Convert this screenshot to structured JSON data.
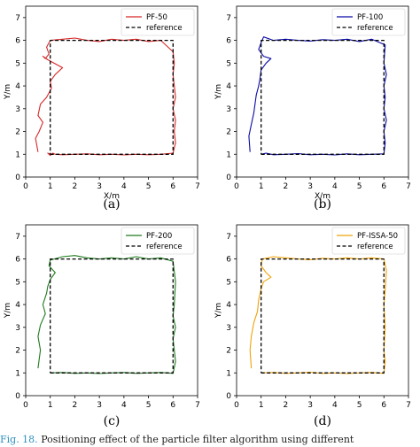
{
  "caption": {
    "figure_number": "Fig. 18.",
    "text": "Positioning effect of the particle filter algorithm using different"
  },
  "chart_data": [
    {
      "type": "line",
      "panel_label": "(a)",
      "xlabel": "X/m",
      "ylabel": "Y/m",
      "xlim": [
        0,
        7
      ],
      "ylim": [
        0,
        7.5
      ],
      "xticks": [
        "0",
        "1",
        "2",
        "3",
        "4",
        "5",
        "6",
        "7"
      ],
      "yticks": [
        "0",
        "1",
        "2",
        "3",
        "4",
        "5",
        "6",
        "7"
      ],
      "legend_position": "top-right",
      "series": [
        {
          "name": "PF-50",
          "color": "#d62728",
          "style": "solid",
          "x": [
            1.0,
            0.9,
            1.0,
            1.1,
            1.2,
            1.5,
            2.0,
            2.5,
            3.0,
            3.5,
            4.0,
            4.5,
            5.0,
            5.5,
            6.0,
            6.1,
            6.05,
            6.1,
            6.0,
            6.1,
            6.05,
            6.0,
            6.05,
            6.0,
            5.5,
            5.0,
            4.5,
            4.0,
            3.5,
            3.0,
            2.5,
            2.0,
            1.5,
            1.0,
            0.85,
            0.95,
            0.8,
            0.7,
            0.9,
            1.5,
            1.2,
            1.0,
            1.05,
            0.85,
            0.6,
            0.5,
            0.7,
            0.55,
            0.4,
            0.5
          ],
          "y": [
            1.0,
            1.05,
            0.95,
            1.05,
            1.0,
            0.98,
            1.0,
            1.02,
            0.98,
            1.0,
            0.97,
            1.0,
            0.98,
            1.0,
            1.05,
            1.5,
            2.0,
            2.5,
            3.0,
            3.5,
            4.0,
            4.5,
            5.0,
            5.5,
            6.0,
            5.95,
            6.05,
            6.0,
            6.05,
            5.95,
            6.0,
            6.1,
            6.05,
            6.0,
            5.7,
            5.4,
            5.2,
            5.3,
            5.15,
            4.8,
            4.5,
            4.2,
            3.9,
            3.5,
            3.2,
            2.7,
            2.4,
            2.0,
            1.7,
            1.1
          ]
        },
        {
          "name": "reference",
          "color": "#000000",
          "style": "dashed",
          "x": [
            1,
            6,
            6,
            1,
            1
          ],
          "y": [
            1,
            1,
            6,
            6,
            1
          ]
        }
      ]
    },
    {
      "type": "line",
      "panel_label": "(b)",
      "xlabel": "X/m",
      "ylabel": "Y/m",
      "xlim": [
        0,
        7
      ],
      "ylim": [
        0,
        7.5
      ],
      "xticks": [
        "0",
        "1",
        "2",
        "3",
        "4",
        "5",
        "6",
        "7"
      ],
      "yticks": [
        "0",
        "1",
        "2",
        "3",
        "4",
        "5",
        "6",
        "7"
      ],
      "legend_position": "top-right",
      "series": [
        {
          "name": "PF-100",
          "color": "#0a0aa8",
          "style": "solid",
          "x": [
            1.0,
            1.2,
            1.5,
            2.0,
            2.5,
            3.0,
            3.5,
            4.0,
            4.5,
            5.0,
            5.5,
            6.0,
            6.05,
            6.0,
            6.1,
            6.0,
            6.05,
            6.0,
            6.1,
            6.0,
            6.05,
            5.5,
            5.0,
            4.5,
            4.0,
            3.5,
            3.0,
            2.5,
            2.0,
            1.5,
            1.1,
            1.0,
            0.9,
            1.1,
            1.4,
            1.2,
            1.0,
            0.95,
            0.9,
            0.8,
            0.75,
            0.7,
            0.6,
            0.5,
            0.55
          ],
          "y": [
            1.0,
            1.05,
            0.98,
            1.0,
            1.03,
            0.98,
            1.0,
            0.97,
            1.02,
            0.98,
            1.0,
            1.02,
            1.5,
            2.0,
            2.5,
            3.0,
            3.5,
            4.0,
            4.5,
            5.0,
            5.8,
            6.05,
            5.95,
            6.05,
            6.0,
            6.03,
            5.97,
            6.0,
            6.05,
            6.0,
            6.15,
            5.9,
            5.6,
            5.3,
            5.2,
            5.0,
            4.7,
            4.3,
            4.0,
            3.6,
            3.2,
            2.8,
            2.3,
            1.8,
            1.1
          ]
        },
        {
          "name": "reference",
          "color": "#000000",
          "style": "dashed",
          "x": [
            1,
            6,
            6,
            1,
            1
          ],
          "y": [
            1,
            1,
            6,
            6,
            1
          ]
        }
      ]
    },
    {
      "type": "line",
      "panel_label": "(c)",
      "xlabel": "",
      "ylabel": "Y/m",
      "xlim": [
        0,
        7
      ],
      "ylim": [
        0,
        7.5
      ],
      "xticks": [
        "0",
        "1",
        "2",
        "3",
        "4",
        "5",
        "6",
        "7"
      ],
      "yticks": [
        "0",
        "1",
        "2",
        "3",
        "4",
        "5",
        "6",
        "7"
      ],
      "legend_position": "top-right",
      "series": [
        {
          "name": "PF-200",
          "color": "#1e7b1e",
          "style": "solid",
          "x": [
            1.0,
            1.5,
            2.0,
            2.5,
            3.0,
            3.5,
            4.0,
            4.5,
            5.0,
            5.5,
            6.0,
            6.1,
            6.05,
            6.0,
            6.1,
            6.0,
            6.05,
            6.1,
            6.0,
            5.5,
            5.0,
            4.5,
            4.0,
            3.5,
            3.0,
            2.5,
            2.0,
            1.5,
            1.0,
            0.95,
            1.2,
            1.0,
            0.9,
            0.85,
            0.7,
            0.8,
            0.6,
            0.5,
            0.6,
            0.5
          ],
          "y": [
            1.0,
            1.02,
            0.98,
            1.0,
            0.97,
            1.0,
            1.02,
            0.98,
            1.0,
            1.02,
            0.98,
            1.5,
            2.0,
            2.5,
            3.0,
            3.5,
            4.0,
            5.0,
            5.9,
            6.05,
            6.0,
            6.1,
            6.0,
            6.05,
            6.0,
            6.05,
            6.15,
            6.1,
            5.95,
            5.7,
            5.4,
            5.1,
            4.8,
            4.5,
            4.0,
            3.6,
            3.1,
            2.6,
            2.0,
            1.2
          ]
        },
        {
          "name": "reference",
          "color": "#000000",
          "style": "dashed",
          "x": [
            1,
            6,
            6,
            1,
            1
          ],
          "y": [
            1,
            1,
            6,
            6,
            1
          ]
        }
      ]
    },
    {
      "type": "line",
      "panel_label": "(d)",
      "xlabel": "",
      "ylabel": "Y/m",
      "xlim": [
        0,
        7
      ],
      "ylim": [
        0,
        7.5
      ],
      "xticks": [
        "0",
        "1",
        "2",
        "3",
        "4",
        "5",
        "6",
        "7"
      ],
      "yticks": [
        "0",
        "1",
        "2",
        "3",
        "4",
        "5",
        "6",
        "7"
      ],
      "legend_position": "top-right",
      "series": [
        {
          "name": "PF-ISSA-50",
          "color": "#f0a30a",
          "style": "solid",
          "x": [
            1.0,
            1.5,
            2.0,
            2.5,
            3.0,
            3.5,
            4.0,
            4.5,
            5.0,
            5.5,
            6.0,
            6.05,
            6.0,
            6.05,
            6.0,
            6.05,
            6.1,
            6.0,
            5.5,
            5.0,
            4.5,
            4.0,
            3.5,
            3.0,
            2.5,
            2.0,
            1.5,
            1.05,
            1.0,
            1.2,
            1.4,
            1.1,
            1.0,
            0.9,
            0.85,
            0.7,
            0.6,
            0.55,
            0.6
          ],
          "y": [
            1.0,
            1.02,
            0.98,
            1.0,
            1.03,
            0.98,
            1.0,
            0.97,
            1.0,
            1.02,
            0.98,
            1.5,
            2.0,
            3.0,
            4.0,
            4.6,
            5.5,
            6.0,
            6.05,
            6.0,
            6.05,
            6.0,
            6.03,
            5.97,
            6.0,
            6.05,
            6.1,
            6.0,
            5.7,
            5.4,
            5.2,
            5.0,
            4.7,
            4.2,
            3.7,
            3.2,
            2.6,
            2.0,
            1.2
          ]
        },
        {
          "name": "reference",
          "color": "#000000",
          "style": "dashed",
          "x": [
            1,
            6,
            6,
            1,
            1
          ],
          "y": [
            1,
            1,
            6,
            6,
            1
          ]
        }
      ]
    }
  ]
}
